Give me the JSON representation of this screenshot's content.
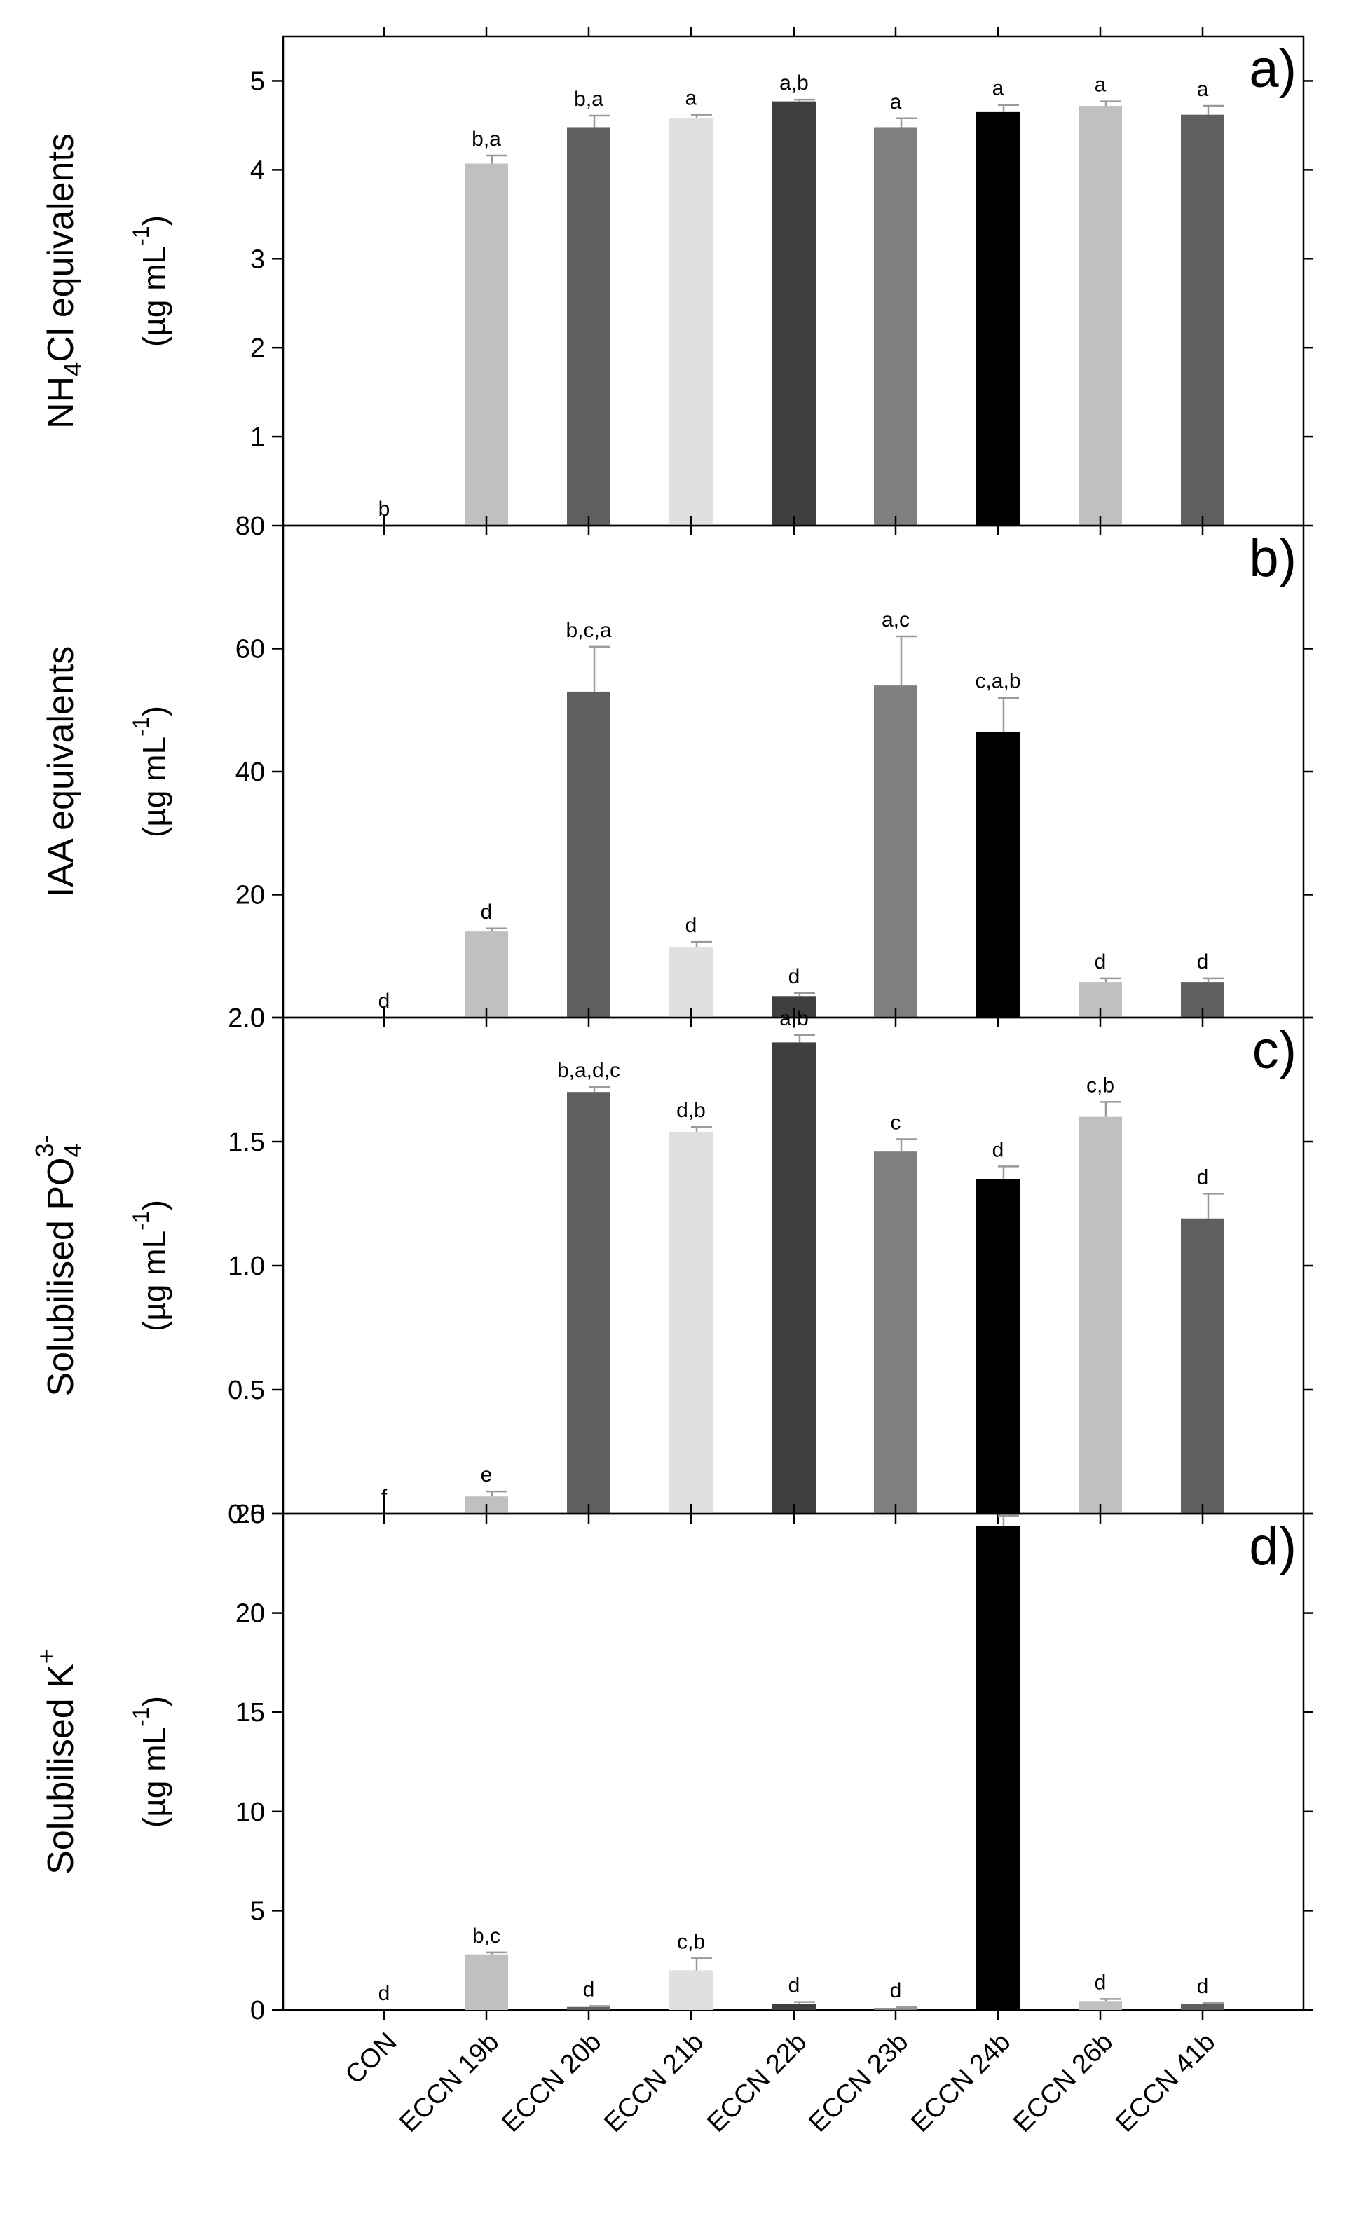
{
  "figure": {
    "categories": [
      "CON",
      "ECCN 19b",
      "ECCN 20b",
      "ECCN 21b",
      "ECCN 22b",
      "ECCN 23b",
      "ECCN 24b",
      "ECCN 26b",
      "ECCN 41b"
    ],
    "bar_colors": [
      "#ffffff",
      "#c0c0c0",
      "#5f5f5f",
      "#e0e0e0",
      "#3f3f3f",
      "#7f7f7f",
      "#000000",
      "#c0c0c0",
      "#5f5f5f"
    ],
    "error_color": "#999999"
  },
  "chart_data": [
    {
      "type": "bar",
      "panel": "a)",
      "ylabel_main": "NH4Cl equivalents",
      "ylabel_unit": "(µg mL-1)",
      "ylim": [
        0,
        5.5
      ],
      "yticks": [
        1,
        2,
        3,
        4,
        5
      ],
      "ytick_labels": [
        "1",
        "2",
        "3",
        "4",
        "5"
      ],
      "categories": [
        "CON",
        "ECCN 19b",
        "ECCN 20b",
        "ECCN 21b",
        "ECCN 22b",
        "ECCN 23b",
        "ECCN 24b",
        "ECCN 26b",
        "ECCN 41b"
      ],
      "values": [
        0,
        4.07,
        4.48,
        4.58,
        4.77,
        4.48,
        4.65,
        4.72,
        4.62
      ],
      "errors": [
        0,
        0.09,
        0.13,
        0.04,
        0.02,
        0.1,
        0.08,
        0.05,
        0.1
      ],
      "letters": [
        "b",
        "b,a",
        "b,a",
        "a",
        "a,b",
        "a",
        "a",
        "a",
        "a"
      ]
    },
    {
      "type": "bar",
      "panel": "b)",
      "ylabel_main": "IAA equivalents",
      "ylabel_unit": "(µg mL-1)",
      "ylim": [
        0,
        80
      ],
      "yticks": [
        0,
        20,
        40,
        60,
        80
      ],
      "ytick_labels": [
        "0",
        "20",
        "40",
        "60",
        "80"
      ],
      "categories": [
        "CON",
        "ECCN 19b",
        "ECCN 20b",
        "ECCN 21b",
        "ECCN 22b",
        "ECCN 23b",
        "ECCN 24b",
        "ECCN 26b",
        "ECCN 41b"
      ],
      "values": [
        0,
        14,
        53,
        11.5,
        3.5,
        54,
        46.5,
        5.8,
        5.8
      ],
      "errors": [
        0,
        0.5,
        7.3,
        0.8,
        0.5,
        8,
        5.5,
        0.6,
        0.6
      ],
      "letters": [
        "d",
        "d",
        "b,c,a",
        "d",
        "d",
        "a,c",
        "c,a,b",
        "d",
        "d"
      ]
    },
    {
      "type": "bar",
      "panel": "c)",
      "ylabel_main": "Solubilised PO43-",
      "ylabel_unit": "(µg mL-1)",
      "ylim": [
        0,
        2.0
      ],
      "yticks": [
        0.0,
        0.5,
        1.0,
        1.5,
        2.0
      ],
      "ytick_labels": [
        "0.0",
        "0.5",
        "1.0",
        "1.5",
        "2.0"
      ],
      "categories": [
        "CON",
        "ECCN 19b",
        "ECCN 20b",
        "ECCN 21b",
        "ECCN 22b",
        "ECCN 23b",
        "ECCN 24b",
        "ECCN 26b",
        "ECCN 41b"
      ],
      "values": [
        0,
        0.07,
        1.7,
        1.54,
        1.9,
        1.46,
        1.35,
        1.6,
        1.19
      ],
      "errors": [
        0,
        0.02,
        0.02,
        0.02,
        0.03,
        0.05,
        0.05,
        0.06,
        0.1
      ],
      "letters": [
        "f",
        "e",
        "b,a,d,c",
        "d,b",
        "a,b",
        "c",
        "d",
        "c,b",
        "d"
      ]
    },
    {
      "type": "bar",
      "panel": "d)",
      "ylabel_main": "Solubilised K+",
      "ylabel_unit": "(µg mL-1)",
      "ylim": [
        0,
        25
      ],
      "yticks": [
        0,
        5,
        10,
        15,
        20,
        25
      ],
      "ytick_labels": [
        "0",
        "5",
        "10",
        "15",
        "20",
        "25"
      ],
      "categories": [
        "CON",
        "ECCN 19b",
        "ECCN 20b",
        "ECCN 21b",
        "ECCN 22b",
        "ECCN 23b",
        "ECCN 24b",
        "ECCN 26b",
        "ECCN 41b"
      ],
      "values": [
        0,
        2.8,
        0.15,
        2.0,
        0.3,
        0.1,
        24.4,
        0.45,
        0.3
      ],
      "errors": [
        0,
        0.1,
        0.05,
        0.6,
        0.1,
        0.05,
        0.5,
        0.1,
        0.05
      ],
      "letters": [
        "d",
        "b,c",
        "d",
        "c,b",
        "d",
        "d",
        "a",
        "d",
        "d"
      ]
    }
  ]
}
